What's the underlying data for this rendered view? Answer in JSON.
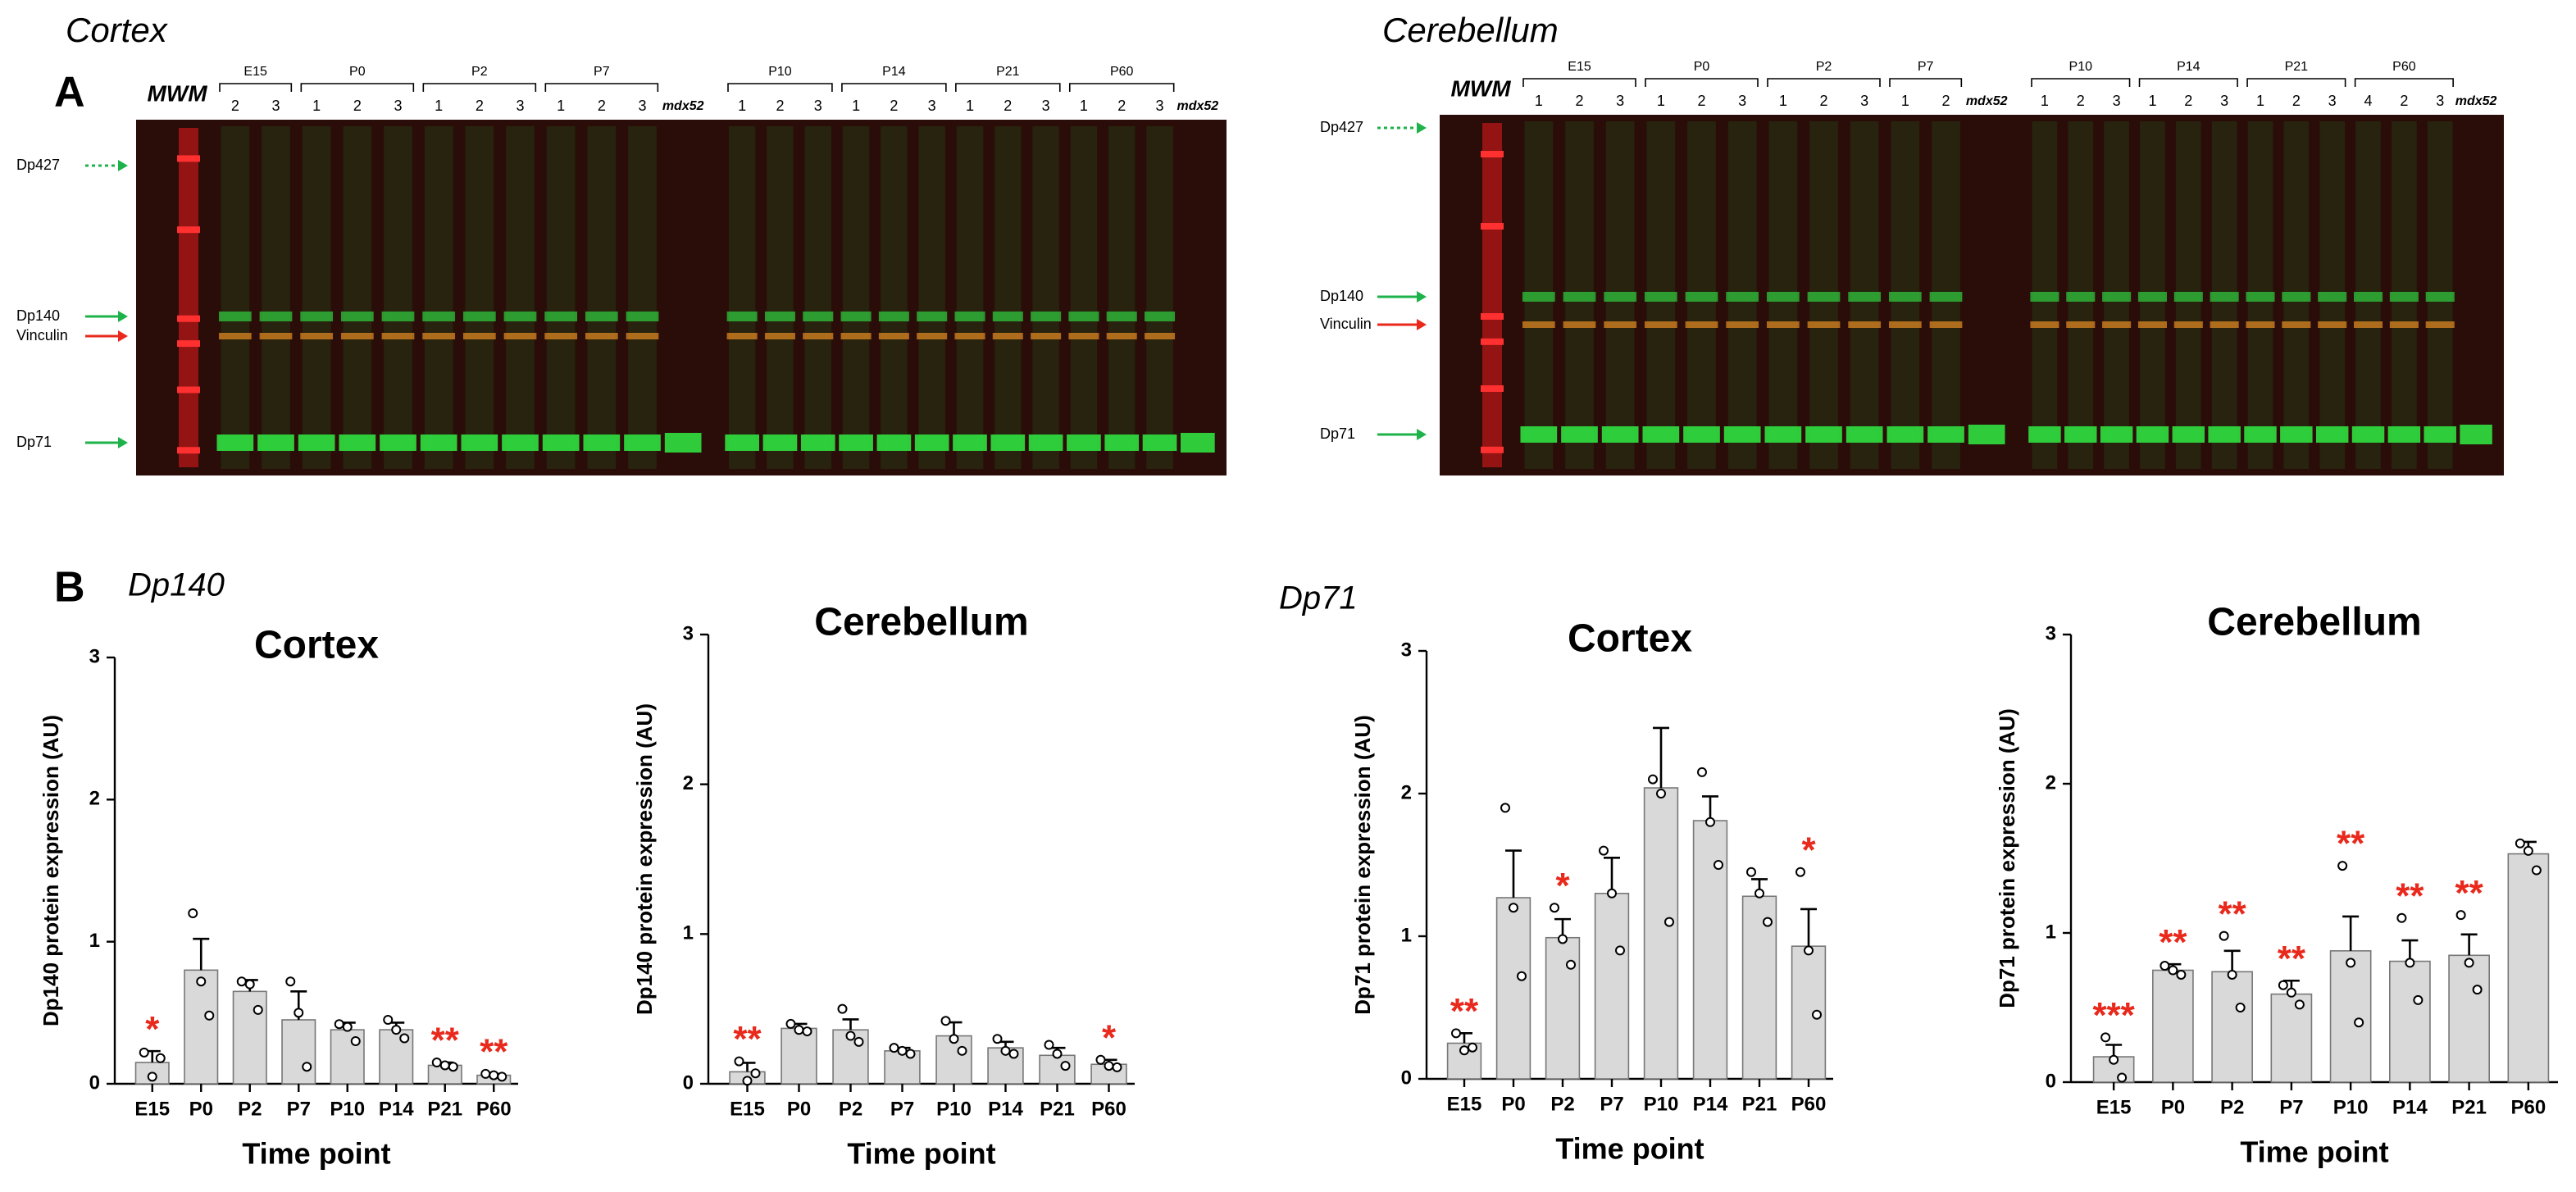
{
  "figure": {
    "panel_a": "A",
    "panel_b": "B",
    "section_1": "Dp140",
    "section_2": "Dp71"
  },
  "blots": [
    {
      "title": "Cortex",
      "marker": "MWM",
      "bands": [
        {
          "name": "Dp427",
          "color": "#1db34a",
          "dotted": true
        },
        {
          "name": "Dp140",
          "color": "#1db34a",
          "dotted": false
        },
        {
          "name": "Vinculin",
          "color": "#e8291c",
          "dotted": false
        },
        {
          "name": "Dp71",
          "color": "#1db34a",
          "dotted": false
        }
      ],
      "panels": [
        {
          "groups": [
            {
              "label": "E15",
              "lanes": [
                "2",
                "3"
              ]
            },
            {
              "label": "P0",
              "lanes": [
                "1",
                "2",
                "3"
              ]
            },
            {
              "label": "P2",
              "lanes": [
                "1",
                "2",
                "3"
              ]
            },
            {
              "label": "P7",
              "lanes": [
                "1",
                "2",
                "3"
              ]
            }
          ],
          "control": "mdx52"
        },
        {
          "groups": [
            {
              "label": "P10",
              "lanes": [
                "1",
                "2",
                "3"
              ]
            },
            {
              "label": "P14",
              "lanes": [
                "1",
                "2",
                "3"
              ]
            },
            {
              "label": "P21",
              "lanes": [
                "1",
                "2",
                "3"
              ]
            },
            {
              "label": "P60",
              "lanes": [
                "1",
                "2",
                "3"
              ]
            }
          ],
          "control": "mdx52"
        }
      ]
    },
    {
      "title": "Cerebellum",
      "marker": "MWM",
      "bands": [
        {
          "name": "Dp427",
          "color": "#1db34a",
          "dotted": true
        },
        {
          "name": "Dp140",
          "color": "#1db34a",
          "dotted": false
        },
        {
          "name": "Vinculin",
          "color": "#e8291c",
          "dotted": false
        },
        {
          "name": "Dp71",
          "color": "#1db34a",
          "dotted": false
        }
      ],
      "panels": [
        {
          "groups": [
            {
              "label": "E15",
              "lanes": [
                "1",
                "2",
                "3"
              ]
            },
            {
              "label": "P0",
              "lanes": [
                "1",
                "2",
                "3"
              ]
            },
            {
              "label": "P2",
              "lanes": [
                "1",
                "2",
                "3"
              ]
            },
            {
              "label": "P7",
              "lanes": [
                "1",
                "2"
              ]
            }
          ],
          "control": "mdx52"
        },
        {
          "groups": [
            {
              "label": "P10",
              "lanes": [
                "1",
                "2",
                "3"
              ]
            },
            {
              "label": "P14",
              "lanes": [
                "1",
                "2",
                "3"
              ]
            },
            {
              "label": "P21",
              "lanes": [
                "1",
                "2",
                "3"
              ]
            },
            {
              "label": "P60",
              "lanes": [
                "4",
                "2",
                "3"
              ]
            }
          ],
          "control": "mdx52"
        }
      ]
    }
  ],
  "chart_data": [
    {
      "type": "bar",
      "title": "Cortex",
      "x_label": "Time point",
      "y_label": "Dp140 protein expression (AU)",
      "color": "#d9d9d9",
      "annotation_color": "#e8291c",
      "categories": [
        "E15",
        "P0",
        "P2",
        "P7",
        "P10",
        "P14",
        "P21",
        "P60"
      ],
      "values": [
        0.15,
        0.8,
        0.65,
        0.45,
        0.38,
        0.38,
        0.13,
        0.06
      ],
      "errors": [
        0.08,
        0.22,
        0.08,
        0.2,
        0.05,
        0.05,
        0.02,
        0.01
      ],
      "points": [
        [
          0.22,
          0.05,
          0.18
        ],
        [
          1.2,
          0.72,
          0.48
        ],
        [
          0.72,
          0.7,
          0.52
        ],
        [
          0.72,
          0.5,
          0.12
        ],
        [
          0.42,
          0.4,
          0.3
        ],
        [
          0.45,
          0.38,
          0.32
        ],
        [
          0.15,
          0.13,
          0.12
        ],
        [
          0.07,
          0.06,
          0.05
        ]
      ],
      "annotations": [
        "*",
        null,
        null,
        null,
        null,
        null,
        "**",
        "**"
      ],
      "ylim": [
        0,
        3
      ],
      "yticks": [
        0,
        1,
        2,
        3
      ]
    },
    {
      "type": "bar",
      "title": "Cerebellum",
      "x_label": "Time point",
      "y_label": "Dp140 protein expression (AU)",
      "color": "#d9d9d9",
      "annotation_color": "#e8291c",
      "categories": [
        "E15",
        "P0",
        "P2",
        "P7",
        "P10",
        "P14",
        "P21",
        "P60"
      ],
      "values": [
        0.08,
        0.37,
        0.36,
        0.22,
        0.32,
        0.24,
        0.19,
        0.13
      ],
      "errors": [
        0.06,
        0.03,
        0.07,
        0.02,
        0.09,
        0.04,
        0.05,
        0.03
      ],
      "points": [
        [
          0.15,
          0.02,
          0.07
        ],
        [
          0.4,
          0.36,
          0.35
        ],
        [
          0.5,
          0.32,
          0.28
        ],
        [
          0.24,
          0.22,
          0.2
        ],
        [
          0.42,
          0.3,
          0.22
        ],
        [
          0.3,
          0.22,
          0.2
        ],
        [
          0.26,
          0.2,
          0.12
        ],
        [
          0.16,
          0.12,
          0.11
        ]
      ],
      "annotations": [
        "**",
        null,
        null,
        null,
        null,
        null,
        null,
        "*"
      ],
      "ylim": [
        0,
        3
      ],
      "yticks": [
        0,
        1,
        2,
        3
      ]
    },
    {
      "type": "bar",
      "title": "Cortex",
      "x_label": "Time point",
      "y_label": "Dp71 protein expression (AU)",
      "color": "#d9d9d9",
      "annotation_color": "#e8291c",
      "categories": [
        "E15",
        "P0",
        "P2",
        "P7",
        "P10",
        "P14",
        "P21",
        "P60"
      ],
      "values": [
        0.25,
        1.27,
        0.99,
        1.3,
        2.04,
        1.81,
        1.28,
        0.93
      ],
      "errors": [
        0.07,
        0.33,
        0.13,
        0.25,
        0.42,
        0.17,
        0.12,
        0.26
      ],
      "points": [
        [
          0.32,
          0.2,
          0.22
        ],
        [
          1.9,
          1.2,
          0.72
        ],
        [
          1.2,
          0.98,
          0.8
        ],
        [
          1.6,
          1.3,
          0.9
        ],
        [
          2.1,
          2.0,
          1.1
        ],
        [
          2.15,
          1.8,
          1.5
        ],
        [
          1.45,
          1.3,
          1.1
        ],
        [
          1.45,
          0.9,
          0.45
        ]
      ],
      "annotations": [
        "**",
        null,
        "*",
        null,
        null,
        null,
        null,
        "*"
      ],
      "ylim": [
        0,
        3
      ],
      "yticks": [
        0,
        1,
        2,
        3
      ]
    },
    {
      "type": "bar",
      "title": "Cerebellum",
      "x_label": "Time point",
      "y_label": "Dp71 protein expression (AU)",
      "color": "#d9d9d9",
      "annotation_color": "#e8291c",
      "categories": [
        "E15",
        "P0",
        "P2",
        "P7",
        "P10",
        "P14",
        "P21",
        "P60"
      ],
      "values": [
        0.17,
        0.75,
        0.74,
        0.59,
        0.88,
        0.81,
        0.85,
        1.53
      ],
      "errors": [
        0.08,
        0.04,
        0.14,
        0.09,
        0.23,
        0.14,
        0.14,
        0.08
      ],
      "points": [
        [
          0.3,
          0.15,
          0.03
        ],
        [
          0.78,
          0.75,
          0.72
        ],
        [
          0.98,
          0.72,
          0.5
        ],
        [
          0.65,
          0.6,
          0.52
        ],
        [
          1.45,
          0.8,
          0.4
        ],
        [
          1.1,
          0.8,
          0.55
        ],
        [
          1.12,
          0.8,
          0.62
        ],
        [
          1.6,
          1.55,
          1.42
        ]
      ],
      "annotations": [
        "***",
        "**",
        "**",
        "**",
        "**",
        "**",
        "**",
        null
      ],
      "ylim": [
        0,
        3
      ],
      "yticks": [
        0,
        1,
        2,
        3
      ]
    }
  ]
}
